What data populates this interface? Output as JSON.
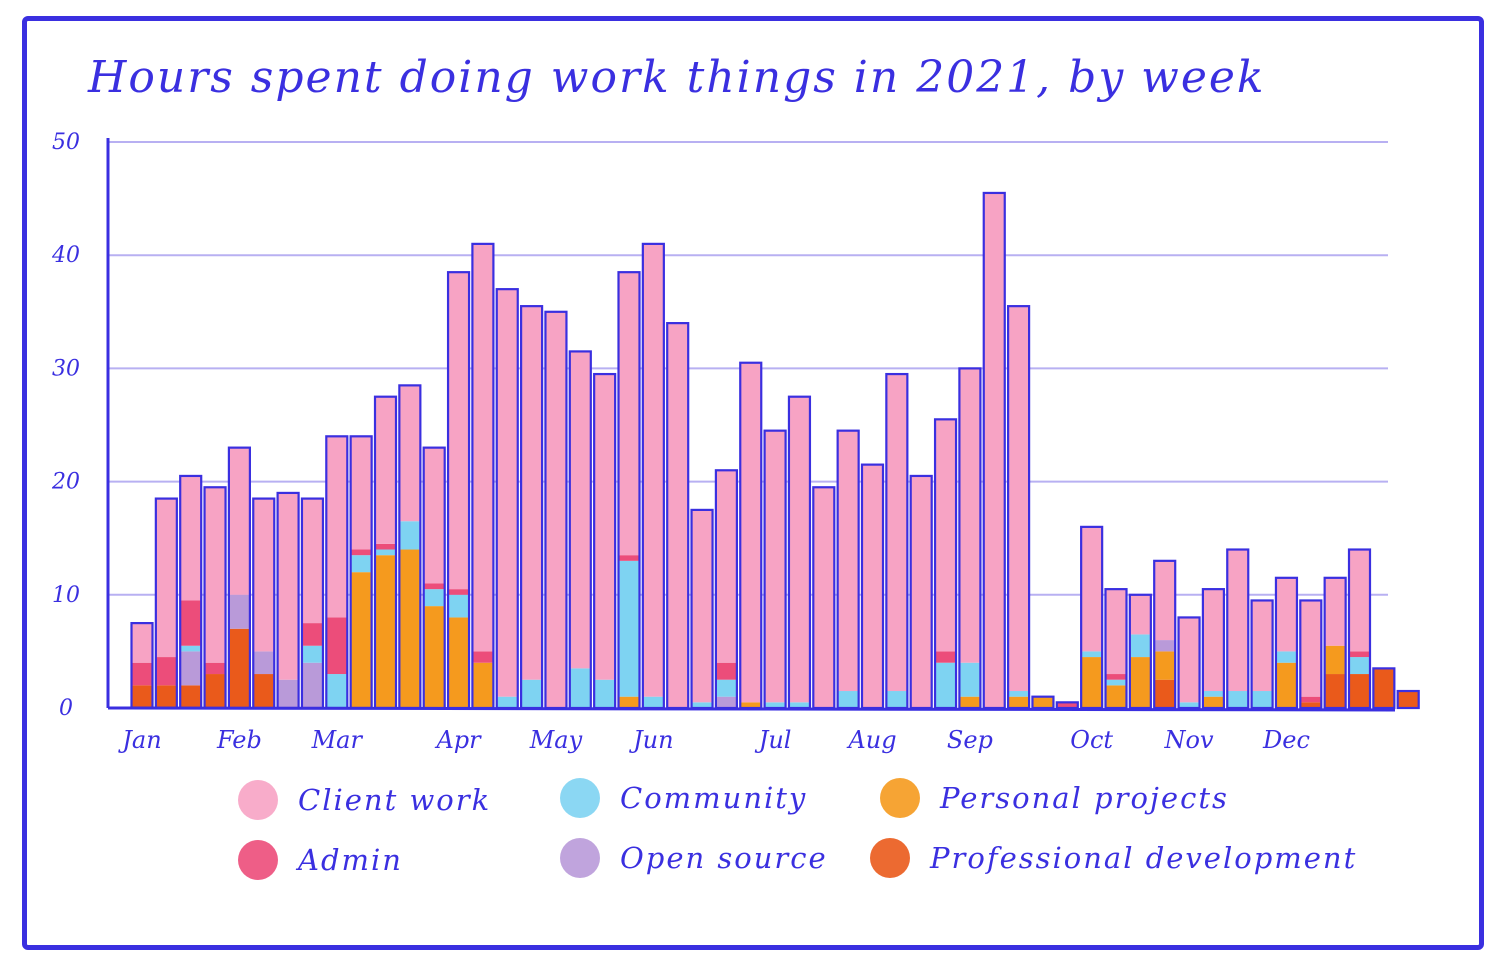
{
  "title": "Hours spent doing work things in 2021, by week",
  "colors": {
    "frame": "#3a2fe0",
    "Client work": "#f7a3c4",
    "Admin": "#ec4d7a",
    "Community": "#7ed3f2",
    "Open source": "#b99ad9",
    "Personal projects": "#f59a1e",
    "Professional development": "#ea5a1b"
  },
  "chart_data": {
    "type": "bar",
    "stacked": true,
    "title": "Hours spent doing work things in 2021, by week",
    "xlabel": "",
    "ylabel": "",
    "ylim": [
      0,
      50
    ],
    "yticks": [
      0,
      10,
      20,
      30,
      40,
      50
    ],
    "grid": true,
    "legend_position": "bottom",
    "x_tick_labels": [
      {
        "label": "Jan",
        "week": 1
      },
      {
        "label": "Feb",
        "week": 5
      },
      {
        "label": "Mar",
        "week": 9
      },
      {
        "label": "Apr",
        "week": 14
      },
      {
        "label": "May",
        "week": 18
      },
      {
        "label": "Jun",
        "week": 22
      },
      {
        "label": "Jul",
        "week": 27
      },
      {
        "label": "Aug",
        "week": 31
      },
      {
        "label": "Sep",
        "week": 35
      },
      {
        "label": "Oct",
        "week": 40
      },
      {
        "label": "Nov",
        "week": 44
      },
      {
        "label": "Dec",
        "week": 48
      }
    ],
    "weeks": [
      1,
      2,
      3,
      4,
      5,
      6,
      7,
      8,
      9,
      10,
      11,
      12,
      13,
      14,
      15,
      16,
      17,
      18,
      19,
      20,
      21,
      22,
      23,
      24,
      25,
      26,
      27,
      28,
      29,
      30,
      31,
      32,
      33,
      34,
      35,
      36,
      37,
      38,
      39,
      40,
      41,
      42,
      43,
      44,
      45,
      46,
      47,
      48,
      49,
      50,
      51,
      52,
      53
    ],
    "series": [
      {
        "name": "Professional development",
        "values": [
          2,
          2,
          2,
          3,
          7,
          3,
          0,
          0,
          0,
          0,
          0,
          0,
          0,
          0,
          0,
          0,
          0,
          0,
          0,
          0,
          0,
          0,
          0,
          0,
          0,
          0,
          0,
          0,
          0,
          0,
          0,
          0,
          0,
          0,
          0,
          0,
          0,
          0,
          0,
          0,
          0,
          0,
          2.5,
          0,
          0,
          0,
          0,
          0,
          0.5,
          3,
          3,
          3.5,
          1.5
        ]
      },
      {
        "name": "Personal projects",
        "values": [
          0,
          0,
          0,
          0,
          0,
          0,
          0,
          0,
          0,
          12,
          13.5,
          14,
          9,
          8,
          4,
          0,
          0,
          0,
          0,
          0,
          1,
          0,
          0,
          0,
          0,
          0.5,
          0,
          0,
          0,
          0,
          0,
          0,
          0,
          0,
          1,
          0,
          1,
          1,
          0,
          4.5,
          2,
          4.5,
          2.5,
          0,
          1,
          0,
          0,
          4,
          0,
          2.5,
          0,
          0,
          0
        ]
      },
      {
        "name": "Open source",
        "values": [
          0,
          0,
          3,
          0,
          3,
          2,
          2.5,
          4,
          0,
          0,
          0,
          0,
          0,
          0,
          0,
          0,
          0,
          0,
          0,
          0,
          0,
          0,
          0,
          0,
          1,
          0,
          0,
          0,
          0,
          0,
          0,
          0,
          0,
          0,
          0,
          0,
          0,
          0,
          0,
          0,
          0,
          0,
          1,
          0,
          0,
          0,
          0,
          0,
          0,
          0,
          0,
          0,
          0
        ]
      },
      {
        "name": "Community",
        "values": [
          0,
          0,
          0.5,
          0,
          0,
          0,
          0,
          1.5,
          3,
          1.5,
          0.5,
          2.5,
          1.5,
          2,
          0,
          1,
          2.5,
          0,
          3.5,
          2.5,
          12,
          1,
          0,
          0.5,
          1.5,
          0,
          0.5,
          0.5,
          0,
          1.5,
          0,
          1.5,
          0,
          4,
          3,
          0,
          0.5,
          0,
          0,
          0.5,
          0.5,
          2,
          0,
          0.5,
          0.5,
          1.5,
          1.5,
          1,
          0,
          0,
          1.5,
          0,
          0
        ]
      },
      {
        "name": "Admin",
        "values": [
          2,
          2.5,
          4,
          1,
          0,
          0,
          0,
          2,
          5,
          0.5,
          0.5,
          0,
          0.5,
          0.5,
          1,
          0,
          0,
          0,
          0,
          0,
          0.5,
          0,
          0,
          0,
          1.5,
          0,
          0,
          0,
          0,
          0,
          0,
          0,
          0,
          1,
          0,
          0,
          0,
          0,
          0.5,
          0,
          0.5,
          0,
          0,
          0,
          0,
          0,
          0,
          0,
          0.5,
          0,
          0.5,
          0,
          0
        ]
      },
      {
        "name": "Client work",
        "values": [
          3.5,
          14,
          11,
          15.5,
          13,
          13.5,
          16.5,
          11,
          16,
          10,
          13,
          12,
          12,
          28,
          36,
          36,
          33,
          35,
          28,
          27,
          25,
          40,
          34,
          17,
          17,
          30,
          24,
          27,
          19.5,
          23,
          21.5,
          28,
          20.5,
          20.5,
          26,
          45.5,
          34,
          0,
          0,
          11,
          7.5,
          3.5,
          7,
          7.5,
          9,
          12.5,
          8,
          6.5,
          8.5,
          6,
          9,
          0,
          0
        ]
      }
    ]
  },
  "legend": [
    {
      "name": "Client work"
    },
    {
      "name": "Community"
    },
    {
      "name": "Personal projects"
    },
    {
      "name": "Admin"
    },
    {
      "name": "Open source"
    },
    {
      "name": "Professional development"
    }
  ]
}
